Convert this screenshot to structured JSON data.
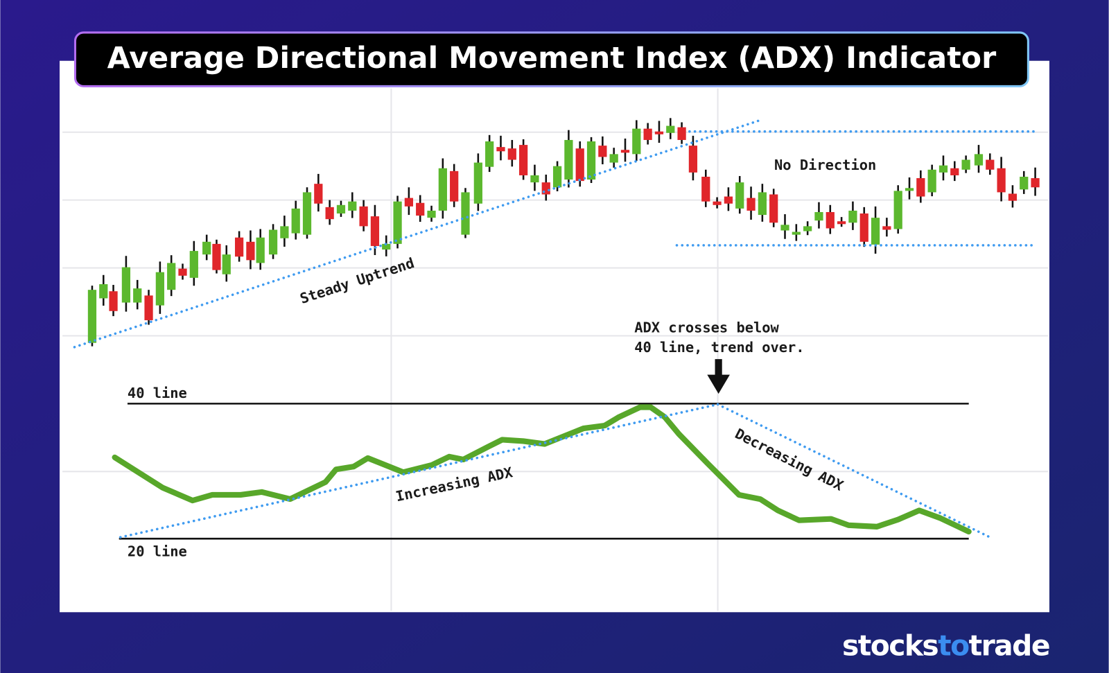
{
  "header": {
    "title": "Average Directional Movement Index (ADX) Indicator"
  },
  "annotations": {
    "steady_uptrend": "Steady Uptrend",
    "no_direction": "No Direction",
    "crossover": [
      "ADX crosses below",
      "40 line, trend over."
    ],
    "line_40": "40 line",
    "line_20": "20 line",
    "increasing": "Increasing ADX",
    "decreasing": "Decreasing ADX"
  },
  "logo": {
    "start": "stocks",
    "highlight": "to",
    "end": "trade"
  }
}
